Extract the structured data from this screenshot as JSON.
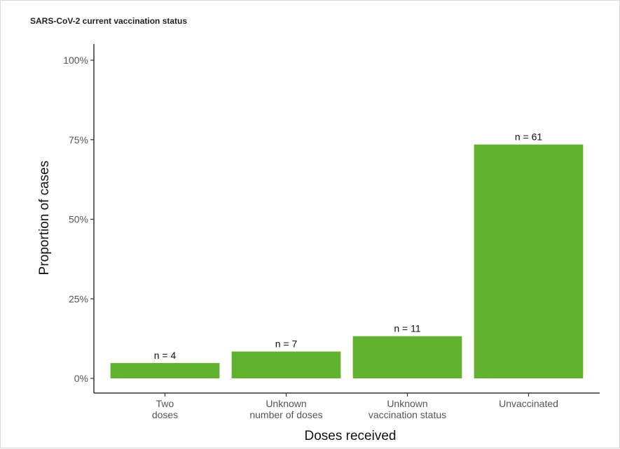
{
  "chart_data": {
    "type": "bar",
    "title": "SARS-CoV-2 current vaccination status",
    "xlabel": "Doses received",
    "ylabel": "Proportion of cases",
    "categories": [
      [
        "Two",
        "doses"
      ],
      [
        "Unknown",
        "number of doses"
      ],
      [
        "Unknown",
        "vaccination status"
      ],
      [
        "Unvaccinated"
      ]
    ],
    "values": [
      0.0482,
      0.0843,
      0.1325,
      0.7349
    ],
    "data_labels": [
      "n = 4",
      "n = 7",
      "n = 11",
      "n = 61"
    ],
    "yticks": [
      {
        "value": 0,
        "label": "0%"
      },
      {
        "value": 0.25,
        "label": "25%"
      },
      {
        "value": 0.5,
        "label": "50%"
      },
      {
        "value": 0.75,
        "label": "75%"
      },
      {
        "value": 1.0,
        "label": "100%"
      }
    ],
    "ylim": [
      0,
      1
    ],
    "grid": false,
    "bar_color": "#62b22f"
  }
}
